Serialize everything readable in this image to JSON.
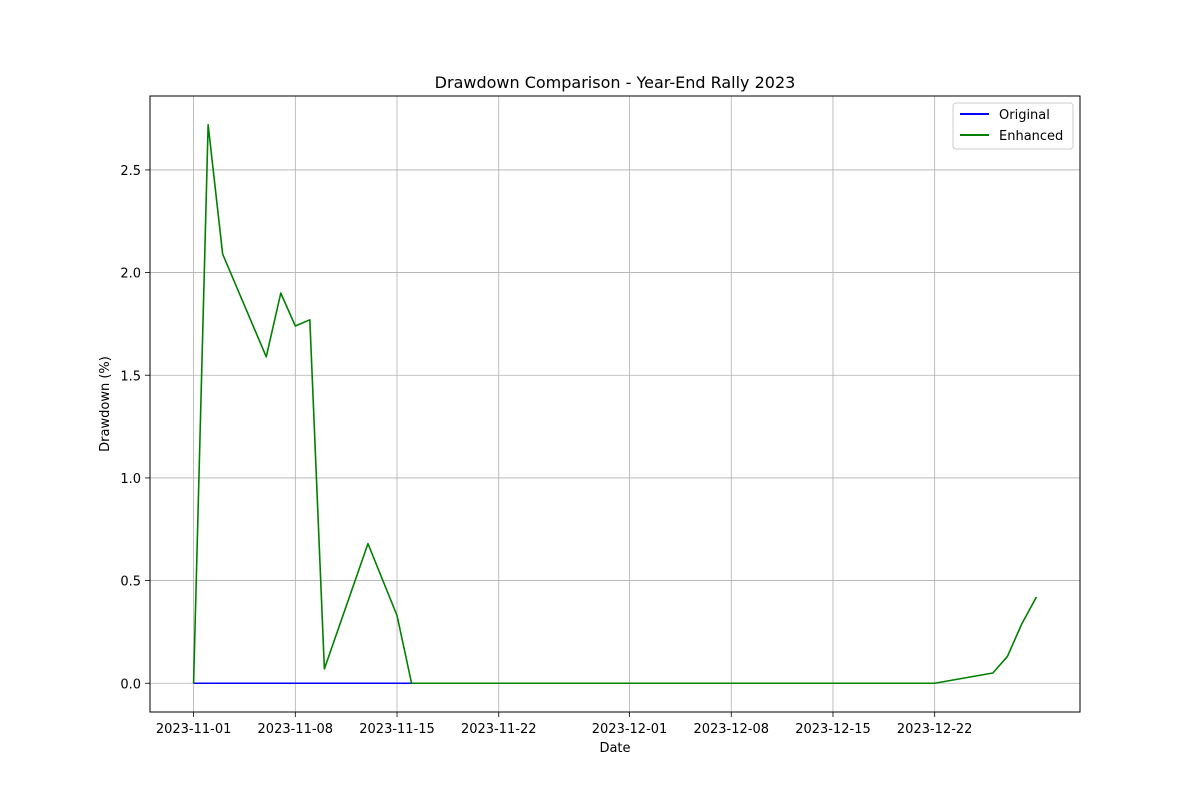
{
  "chart_data": {
    "type": "line",
    "title": "Drawdown Comparison - Year-End Rally 2023",
    "xlabel": "Date",
    "ylabel": "Drawdown (%)",
    "xlim": [
      "2023-10-29",
      "2024-01-01"
    ],
    "ylim": [
      -0.14,
      2.86
    ],
    "x_ticks": [
      "2023-11-01",
      "2023-11-08",
      "2023-11-15",
      "2023-11-22",
      "2023-12-01",
      "2023-12-08",
      "2023-12-15",
      "2023-12-22"
    ],
    "y_ticks": [
      0.0,
      0.5,
      1.0,
      1.5,
      2.0,
      2.5
    ],
    "y_tick_labels": [
      "0.0",
      "0.5",
      "1.0",
      "1.5",
      "2.0",
      "2.5"
    ],
    "grid": true,
    "legend_position": "top-right",
    "series": [
      {
        "name": "Original",
        "color": "#0000ff",
        "points": [
          {
            "x": "2023-11-01",
            "y": 0.0
          },
          {
            "x": "2023-11-16",
            "y": 0.0
          }
        ]
      },
      {
        "name": "Enhanced",
        "color": "#008000",
        "points": [
          {
            "x": "2023-11-01",
            "y": 0.0
          },
          {
            "x": "2023-11-02",
            "y": 2.72
          },
          {
            "x": "2023-11-03",
            "y": 2.09
          },
          {
            "x": "2023-11-06",
            "y": 1.59
          },
          {
            "x": "2023-11-07",
            "y": 1.9
          },
          {
            "x": "2023-11-08",
            "y": 1.74
          },
          {
            "x": "2023-11-09",
            "y": 1.77
          },
          {
            "x": "2023-11-10",
            "y": 0.07
          },
          {
            "x": "2023-11-13",
            "y": 0.68
          },
          {
            "x": "2023-11-15",
            "y": 0.33
          },
          {
            "x": "2023-11-16",
            "y": 0.0
          },
          {
            "x": "2023-11-17",
            "y": 0.0
          },
          {
            "x": "2023-11-20",
            "y": 0.0
          },
          {
            "x": "2023-11-22",
            "y": 0.0
          },
          {
            "x": "2023-11-27",
            "y": 0.0
          },
          {
            "x": "2023-12-01",
            "y": 0.0
          },
          {
            "x": "2023-12-08",
            "y": 0.0
          },
          {
            "x": "2023-12-15",
            "y": 0.0
          },
          {
            "x": "2023-12-22",
            "y": 0.0
          },
          {
            "x": "2023-12-26",
            "y": 0.05
          },
          {
            "x": "2023-12-27",
            "y": 0.13
          },
          {
            "x": "2023-12-28",
            "y": 0.29
          },
          {
            "x": "2023-12-29",
            "y": 0.42
          }
        ]
      }
    ]
  }
}
